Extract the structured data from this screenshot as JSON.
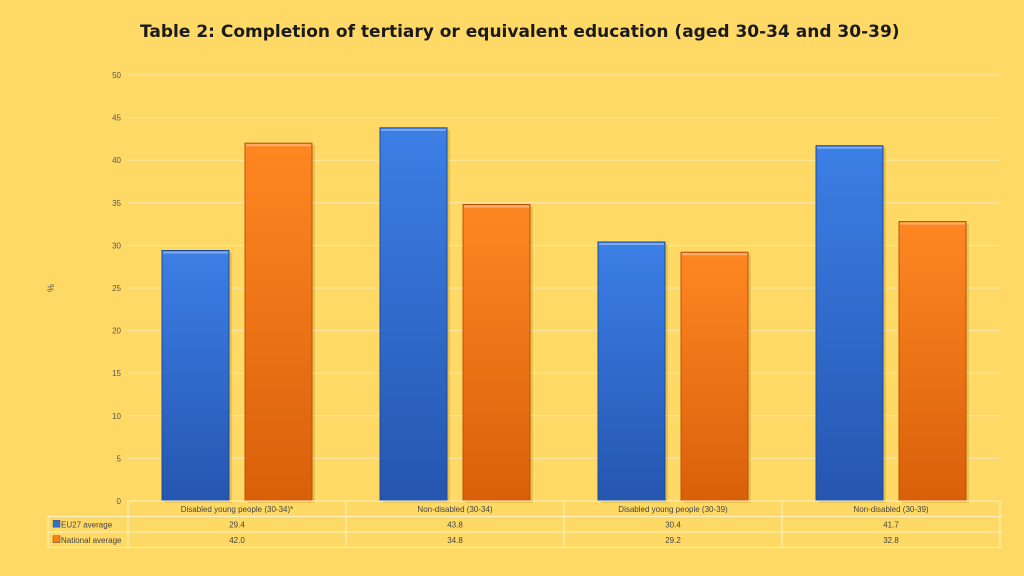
{
  "chart_data": {
    "type": "bar",
    "title": "Table 2: Completion of tertiary or equivalent education (aged 30-34 and 30-39)",
    "ylabel": "%",
    "xlabel": "",
    "ylim": [
      0,
      50
    ],
    "yticks": [
      0,
      5,
      10,
      15,
      20,
      25,
      30,
      35,
      40,
      45,
      50
    ],
    "grid": true,
    "legend": "data-table",
    "categories": [
      "Disabled young people (30-34)*",
      "Non-disabled (30-34)",
      "Disabled young people (30-39)",
      "Non-disabled (30-39)"
    ],
    "series": [
      {
        "name": "EU27 average",
        "color": "#2f6fd6",
        "values": [
          29.4,
          43.8,
          30.4,
          41.7
        ],
        "labels": [
          "29.4",
          "43.8",
          "30.4",
          "41.7"
        ]
      },
      {
        "name": "National average",
        "color": "#ff7f11",
        "values": [
          42.0,
          34.8,
          29.2,
          32.8
        ],
        "labels": [
          "42.0",
          "34.8",
          "29.2",
          "32.8"
        ]
      }
    ]
  }
}
